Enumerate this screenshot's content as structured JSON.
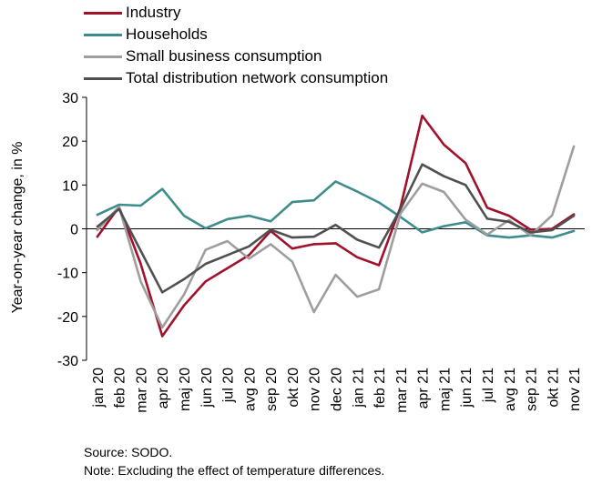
{
  "chart_data": {
    "type": "line",
    "title": "",
    "xlabel": "",
    "ylabel": "Year-on-year change, in %",
    "ylim": [
      -30,
      30
    ],
    "yticks": [
      -30,
      -20,
      -10,
      0,
      10,
      20,
      30
    ],
    "grid": false,
    "legend_position": "top-left",
    "categories": [
      "jan 20",
      "feb 20",
      "mar 20",
      "apr 20",
      "maj 20",
      "jun 20",
      "jul 20",
      "avg 20",
      "sep 20",
      "okt 20",
      "nov 20",
      "dec 20",
      "jan 21",
      "feb 21",
      "mar 21",
      "apr 21",
      "maj 21",
      "jun 21",
      "jul 21",
      "avg 21",
      "sep 21",
      "okt 21",
      "nov 21"
    ],
    "series": [
      {
        "name": "Industry",
        "color": "#A0112C",
        "values": [
          -1.8,
          5.0,
          -8.0,
          -24.5,
          -17.5,
          -12.0,
          -9.0,
          -6.0,
          -0.5,
          -4.5,
          -3.5,
          -3.3,
          -6.5,
          -8.3,
          5.0,
          25.8,
          19.2,
          15.0,
          4.8,
          3.0,
          -0.2,
          0.0,
          3.3
        ]
      },
      {
        "name": "Households",
        "color": "#3E8C8D",
        "values": [
          3.2,
          5.5,
          5.3,
          9.1,
          3.0,
          0.1,
          2.2,
          3.0,
          1.7,
          6.1,
          6.5,
          10.8,
          8.5,
          6.0,
          2.7,
          -0.8,
          0.6,
          1.5,
          -1.5,
          -2.0,
          -1.5,
          -2.0,
          -0.5
        ]
      },
      {
        "name": "Small business consumption",
        "color": "#9E9E9E",
        "values": [
          -0.3,
          5.0,
          -12.0,
          -22.5,
          -15.0,
          -4.8,
          -2.8,
          -6.8,
          -3.5,
          -7.5,
          -19.0,
          -10.5,
          -15.5,
          -13.8,
          3.5,
          10.3,
          8.4,
          2.1,
          -1.3,
          2.0,
          -1.5,
          3.1,
          18.8
        ]
      },
      {
        "name": "Total distribution network consumption",
        "color": "#505050",
        "values": [
          0.5,
          4.5,
          -5.0,
          -14.5,
          -11.5,
          -8.0,
          -6.0,
          -4.0,
          -0.2,
          -2.0,
          -1.8,
          0.9,
          -2.5,
          -4.3,
          4.5,
          14.7,
          12.0,
          10.0,
          2.3,
          1.6,
          -0.8,
          -0.3,
          3.0
        ]
      }
    ]
  },
  "footer": {
    "source": "Source: SODO.",
    "note": "Note: Excluding the effect of temperature differences."
  }
}
